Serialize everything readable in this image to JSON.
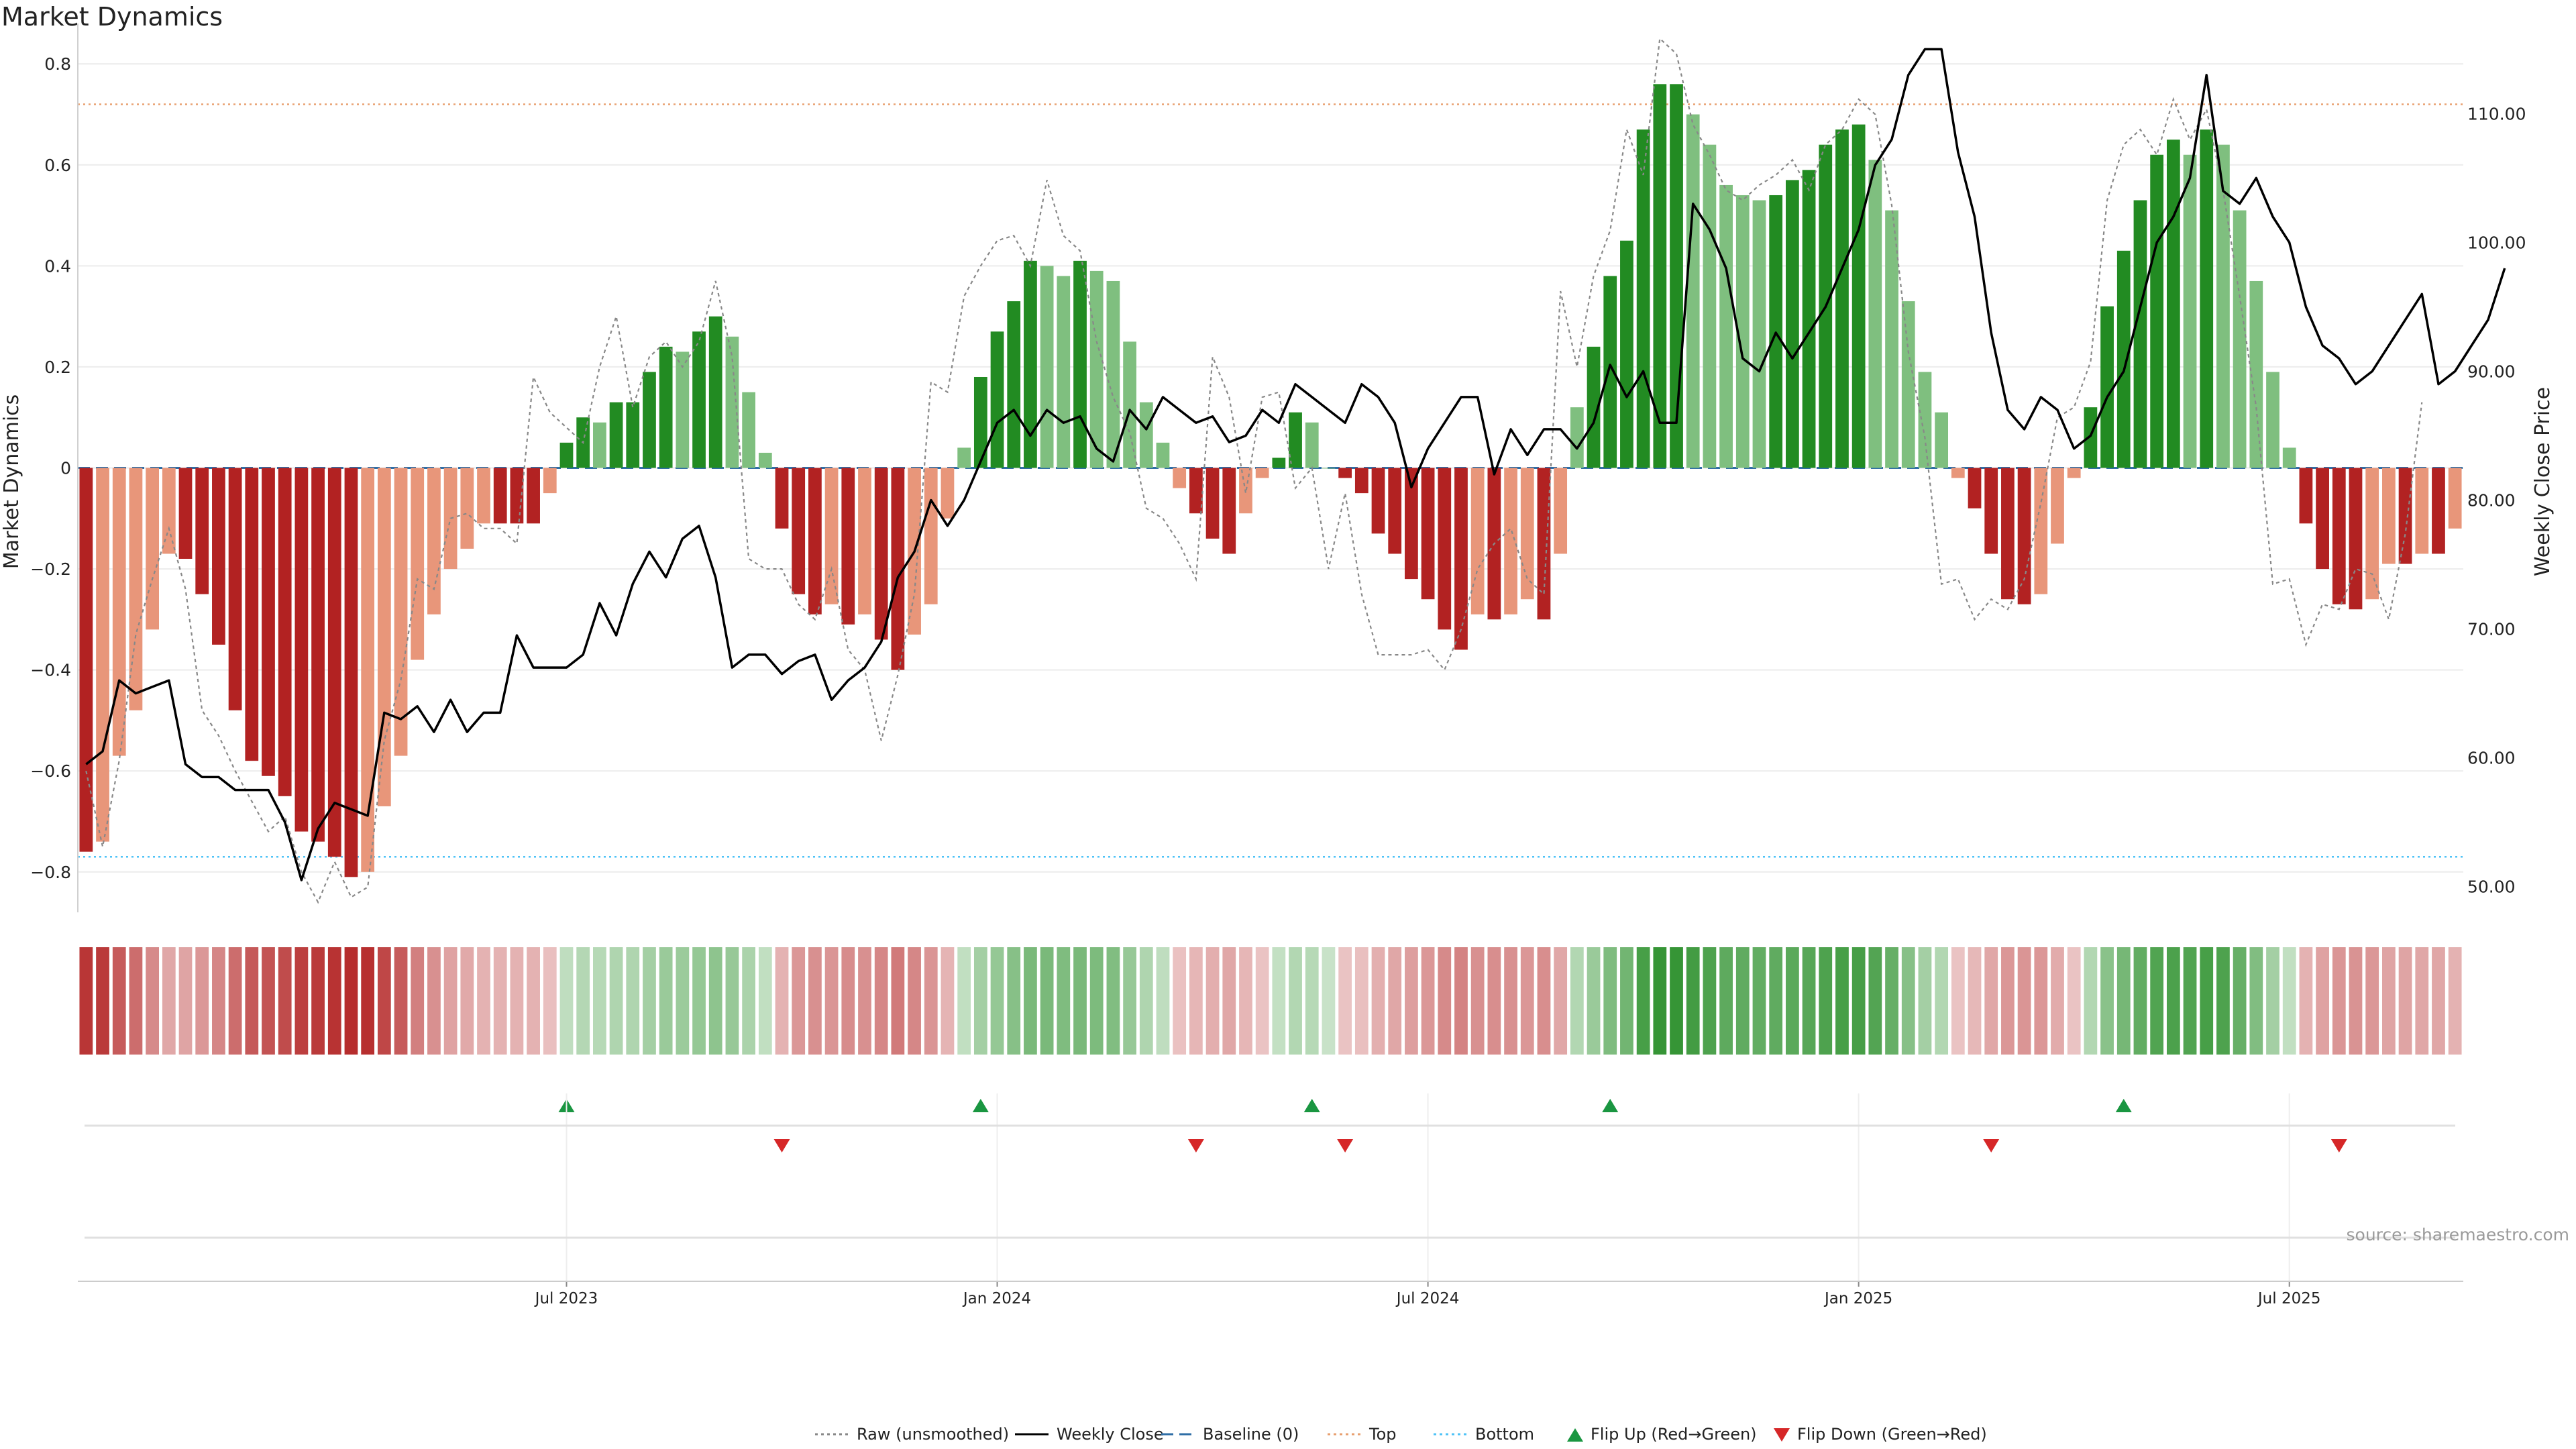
{
  "title": "Market Dynamics",
  "source_text": "source: sharemaestro.com",
  "colors": {
    "strong_green": "#228b22",
    "light_green": "#7fbf7f",
    "strong_red": "#b22222",
    "light_red": "#e8967a",
    "top_line": "#e8a070",
    "bottom_line": "#4fc3f7",
    "baseline": "#2f6ea6",
    "raw": "#888888",
    "close": "#000000",
    "flip_up": "#1a9641",
    "flip_down": "#d62728"
  },
  "chart_data": {
    "type": "bar",
    "title": "Market Dynamics",
    "ylabel_left": "Market Dynamics",
    "ylabel_right": "Weekly Close Price",
    "ylim_left": [
      -0.88,
      0.88
    ],
    "ylim_right": [
      48,
      117
    ],
    "yticks_left": [
      -0.8,
      -0.6,
      -0.4,
      -0.2,
      0,
      0.2,
      0.4,
      0.6,
      0.8
    ],
    "ytick_labels_left": [
      "−0.8",
      "−0.6",
      "−0.4",
      "−0.2",
      "0",
      "0.2",
      "0.4",
      "0.6",
      "0.8"
    ],
    "yticks_right": [
      50,
      60,
      70,
      80,
      90,
      100,
      110
    ],
    "ytick_labels_right": [
      "50.00",
      "60.00",
      "70.00",
      "80.00",
      "90.00",
      "100.00",
      "110.00"
    ],
    "x_tick_labels": [
      {
        "label": "Jul 2023",
        "week": 29.5
      },
      {
        "label": "Jan 2024",
        "week": 55.5
      },
      {
        "label": "Jul 2024",
        "week": 81.5
      },
      {
        "label": "Jan 2025",
        "week": 107.5
      },
      {
        "label": "Jul 2025",
        "week": 133.5
      }
    ],
    "top_level": 0.72,
    "bottom_level": -0.77,
    "baseline": 0,
    "values": [
      -0.76,
      -0.74,
      -0.57,
      -0.48,
      -0.32,
      -0.17,
      -0.18,
      -0.25,
      -0.35,
      -0.48,
      -0.58,
      -0.61,
      -0.65,
      -0.72,
      -0.74,
      -0.77,
      -0.81,
      -0.8,
      -0.67,
      -0.57,
      -0.38,
      -0.29,
      -0.2,
      -0.16,
      -0.11,
      -0.11,
      -0.11,
      -0.11,
      -0.05,
      0.05,
      0.1,
      0.09,
      0.13,
      0.13,
      0.19,
      0.24,
      0.23,
      0.27,
      0.3,
      0.26,
      0.15,
      0.03,
      -0.12,
      -0.25,
      -0.29,
      -0.27,
      -0.31,
      -0.29,
      -0.34,
      -0.4,
      -0.33,
      -0.27,
      -0.1,
      0.04,
      0.18,
      0.27,
      0.33,
      0.41,
      0.4,
      0.38,
      0.41,
      0.39,
      0.37,
      0.25,
      0.13,
      0.05,
      -0.04,
      -0.09,
      -0.14,
      -0.17,
      -0.09,
      -0.02,
      0.02,
      0.11,
      0.09,
      0,
      -0.02,
      -0.05,
      -0.13,
      -0.17,
      -0.22,
      -0.26,
      -0.32,
      -0.36,
      -0.29,
      -0.3,
      -0.29,
      -0.26,
      -0.3,
      -0.17,
      0.12,
      0.24,
      0.38,
      0.45,
      0.67,
      0.76,
      0.76,
      0.7,
      0.64,
      0.56,
      0.54,
      0.53,
      0.54,
      0.57,
      0.59,
      0.64,
      0.67,
      0.68,
      0.61,
      0.51,
      0.33,
      0.19,
      0.11,
      -0.02,
      -0.08,
      -0.17,
      -0.26,
      -0.27,
      -0.25,
      -0.15,
      -0.02,
      0.12,
      0.32,
      0.43,
      0.53,
      0.62,
      0.65,
      0.62,
      0.67,
      0.64,
      0.51,
      0.37,
      0.19,
      0.04,
      -0.11,
      -0.2,
      -0.27,
      -0.28,
      -0.26,
      -0.19,
      -0.19,
      -0.17,
      -0.17,
      -0.12
    ],
    "series": [
      {
        "name": "Raw (unsmoothed)",
        "values": [
          -0.6,
          -0.75,
          -0.58,
          -0.33,
          -0.22,
          -0.12,
          -0.24,
          -0.48,
          -0.53,
          -0.6,
          -0.66,
          -0.72,
          -0.69,
          -0.8,
          -0.86,
          -0.78,
          -0.85,
          -0.83,
          -0.54,
          -0.42,
          -0.22,
          -0.24,
          -0.1,
          -0.09,
          -0.12,
          -0.12,
          -0.15,
          0.18,
          0.11,
          0.08,
          0.05,
          0.2,
          0.3,
          0.12,
          0.22,
          0.25,
          0.2,
          0.25,
          0.37,
          0.22,
          -0.18,
          -0.2,
          -0.2,
          -0.27,
          -0.3,
          -0.2,
          -0.36,
          -0.4,
          -0.54,
          -0.41,
          -0.25,
          0.17,
          0.15,
          0.34,
          0.4,
          0.45,
          0.46,
          0.4,
          0.57,
          0.46,
          0.43,
          0.25,
          0.14,
          0.07,
          -0.08,
          -0.1,
          -0.15,
          -0.22,
          0.22,
          0.14,
          -0.05,
          0.14,
          0.15,
          -0.04,
          0,
          -0.2,
          -0.05,
          -0.25,
          -0.37,
          -0.37,
          -0.37,
          -0.36,
          -0.4,
          -0.32,
          -0.2,
          -0.15,
          -0.12,
          -0.22,
          -0.25,
          0.35,
          0.2,
          0.38,
          0.47,
          0.67,
          0.58,
          0.85,
          0.82,
          0.68,
          0.62,
          0.55,
          0.53,
          0.56,
          0.58,
          0.61,
          0.55,
          0.64,
          0.67,
          0.73,
          0.7,
          0.52,
          0.23,
          0.06,
          -0.23,
          -0.22,
          -0.3,
          -0.26,
          -0.28,
          -0.22,
          -0.07,
          0.1,
          0.12,
          0.21,
          0.53,
          0.64,
          0.67,
          0.62,
          0.73,
          0.65,
          0.71,
          0.55,
          0.34,
          0.12,
          -0.23,
          -0.22,
          -0.35,
          -0.27,
          -0.28,
          -0.2,
          -0.21,
          -0.3,
          -0.13,
          0.13
        ]
      },
      {
        "name": "Weekly Close",
        "values": [
          59.5,
          60.5,
          66,
          65,
          65.5,
          66,
          59.5,
          58.5,
          58.5,
          57.5,
          57.5,
          57.5,
          55,
          50.5,
          54.5,
          56.5,
          56,
          55.5,
          63.5,
          63,
          64,
          62,
          64.5,
          62,
          63.5,
          63.5,
          69.5,
          67,
          67,
          67,
          68,
          72,
          69.5,
          73.5,
          76,
          74,
          77,
          78,
          74,
          67,
          68,
          68,
          66.5,
          67.5,
          68,
          64.5,
          66,
          67,
          69,
          74,
          76,
          80,
          78,
          80,
          83,
          86,
          87,
          85,
          87,
          86,
          86.5,
          84,
          83,
          87,
          85.5,
          88,
          87,
          86,
          86.5,
          84.5,
          85,
          87,
          86,
          89,
          88,
          87,
          86,
          89,
          88,
          86,
          81,
          84,
          86,
          88,
          88,
          82,
          85.5,
          83.5,
          85.5,
          85.5,
          84,
          86,
          90.5,
          88,
          90,
          86,
          86,
          103,
          101,
          98,
          91,
          90,
          93,
          91,
          93,
          95,
          98,
          101,
          106,
          108,
          113,
          115,
          115,
          107,
          102,
          93,
          87,
          85.5,
          88,
          87,
          84,
          85,
          88,
          90,
          95,
          100,
          102,
          105,
          113,
          104,
          103,
          105,
          102,
          100,
          95,
          92,
          91,
          89,
          90,
          92,
          94,
          96,
          89,
          90,
          92,
          94,
          98
        ]
      },
      {
        "name": "Baseline (0)"
      },
      {
        "name": "Top"
      },
      {
        "name": "Bottom"
      },
      {
        "name": "Flip Up (Red→Green)"
      },
      {
        "name": "Flip Down (Green→Red)"
      }
    ],
    "flip_up_weeks": [
      29,
      54,
      74,
      92,
      123
    ],
    "flip_down_weeks": [
      42,
      67,
      76,
      115,
      136
    ]
  },
  "legend_items": [
    {
      "label": "Raw (unsmoothed)",
      "type": "dotted",
      "color": "#888888"
    },
    {
      "label": "Weekly Close",
      "type": "solid",
      "color": "#000000"
    },
    {
      "label": "Baseline (0)",
      "type": "dashed",
      "color": "#2f6ea6"
    },
    {
      "label": "Top",
      "type": "dotted",
      "color": "#e8a070"
    },
    {
      "label": "Bottom",
      "type": "dotted",
      "color": "#4fc3f7"
    },
    {
      "label": "Flip Up (Red→Green)",
      "type": "up",
      "color": "#1a9641"
    },
    {
      "label": "Flip Down (Green→Red)",
      "type": "down",
      "color": "#d62728"
    }
  ]
}
